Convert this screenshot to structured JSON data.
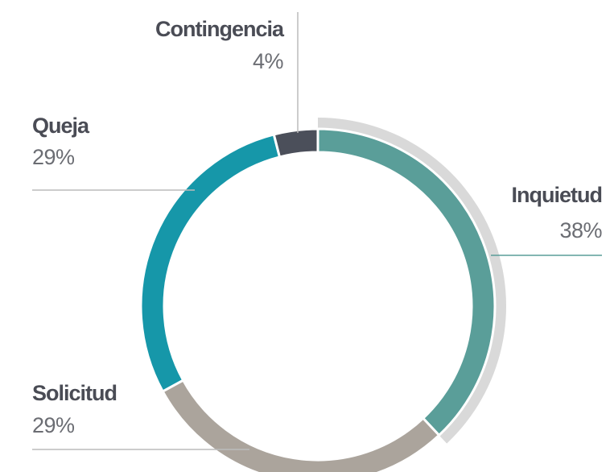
{
  "chart_data": {
    "type": "donut",
    "categories": [
      "Inquietud",
      "Solicitud",
      "Queja",
      "Contingencia"
    ],
    "values": [
      38,
      29,
      29,
      4
    ],
    "value_labels": [
      "38%",
      "29%",
      "29%",
      "4%"
    ],
    "colors": [
      "#5a9e99",
      "#aba49c",
      "#1697a9",
      "#4b4f5a"
    ]
  }
}
